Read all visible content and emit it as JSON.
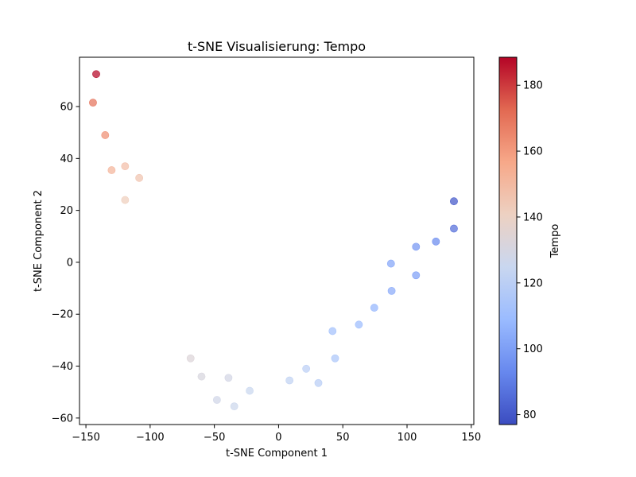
{
  "chart_data": {
    "type": "scatter",
    "title": "t-SNE Visualisierung: Tempo",
    "xlabel": "t-SNE Component 1",
    "ylabel": "t-SNE Component 2",
    "xlim": [
      -155,
      152
    ],
    "ylim": [
      -62.5,
      79
    ],
    "xticks": [
      -150,
      -100,
      -50,
      0,
      50,
      100,
      150
    ],
    "yticks": [
      -60,
      -40,
      -20,
      0,
      20,
      40,
      60
    ],
    "xtick_labels": [
      "−150",
      "−100",
      "−50",
      "0",
      "50",
      "100",
      "150"
    ],
    "ytick_labels": [
      "−60",
      "−40",
      "−20",
      "0",
      "20",
      "40",
      "60"
    ],
    "grid": false,
    "colorbar": {
      "label": "Tempo",
      "range": [
        77,
        188.5
      ],
      "ticks": [
        80,
        100,
        120,
        140,
        160,
        180
      ],
      "tick_labels": [
        "80",
        "100",
        "120",
        "140",
        "160",
        "180"
      ],
      "colormap": "coolwarm",
      "stops": [
        "#3b4cc0",
        "#6788ee",
        "#9abbff",
        "#c9d7f0",
        "#edd1c2",
        "#f7a889",
        "#e26952",
        "#b40426"
      ]
    },
    "points": [
      {
        "x": -142,
        "y": 72.5,
        "tempo": 188
      },
      {
        "x": -144.5,
        "y": 61.5,
        "tempo": 170
      },
      {
        "x": -135,
        "y": 49,
        "tempo": 163
      },
      {
        "x": -130,
        "y": 35.5,
        "tempo": 152
      },
      {
        "x": -119.5,
        "y": 37,
        "tempo": 148
      },
      {
        "x": -108.5,
        "y": 32.5,
        "tempo": 146
      },
      {
        "x": -119.5,
        "y": 24,
        "tempo": 142
      },
      {
        "x": -68.5,
        "y": -37,
        "tempo": 133
      },
      {
        "x": -60,
        "y": -44,
        "tempo": 131
      },
      {
        "x": -39,
        "y": -44.5,
        "tempo": 129
      },
      {
        "x": -48,
        "y": -53,
        "tempo": 128
      },
      {
        "x": -34.5,
        "y": -55.5,
        "tempo": 126
      },
      {
        "x": -22.5,
        "y": -49.5,
        "tempo": 125
      },
      {
        "x": 8.5,
        "y": -45.5,
        "tempo": 122
      },
      {
        "x": 21.5,
        "y": -41,
        "tempo": 120
      },
      {
        "x": 31,
        "y": -46.5,
        "tempo": 119
      },
      {
        "x": 44,
        "y": -37,
        "tempo": 115
      },
      {
        "x": 42,
        "y": -26.5,
        "tempo": 112
      },
      {
        "x": 62.5,
        "y": -24,
        "tempo": 110
      },
      {
        "x": 74.5,
        "y": -17.5,
        "tempo": 107
      },
      {
        "x": 88,
        "y": -11,
        "tempo": 104
      },
      {
        "x": 87.5,
        "y": -0.5,
        "tempo": 102
      },
      {
        "x": 107,
        "y": -5,
        "tempo": 100
      },
      {
        "x": 107,
        "y": 6,
        "tempo": 97
      },
      {
        "x": 122.5,
        "y": 8,
        "tempo": 94
      },
      {
        "x": 136.5,
        "y": 13,
        "tempo": 86
      },
      {
        "x": 136.5,
        "y": 23.5,
        "tempo": 80
      }
    ]
  }
}
